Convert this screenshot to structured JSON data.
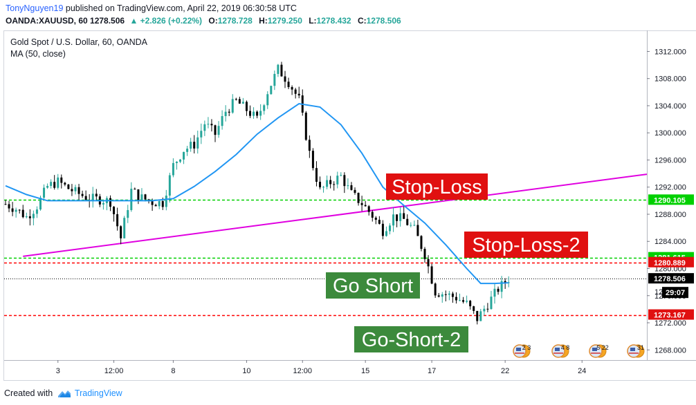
{
  "header": {
    "author": "TonyNguyen19",
    "published_text": "published on TradingView.com, April 22, 2019 06:30:58 UTC",
    "symbol": "OANDA:XAUUSD, 60",
    "last": "1278.506",
    "change": "▲ +2.826 (+0.22%)",
    "o_label": "O:",
    "o_value": "1278.728",
    "h_label": "H:",
    "h_value": "1279.250",
    "l_label": "L:",
    "l_value": "1278.432",
    "c_label": "C:",
    "c_value": "1278.506"
  },
  "legend": {
    "title": "Gold Spot / U.S. Dollar, 60, OANDA",
    "ma": "MA (50, close)"
  },
  "footer": {
    "created_with": "Created with",
    "brand": "TradingView"
  },
  "colors": {
    "up": "#26a69a",
    "candle_body": "#000000",
    "ma_line": "#2196f3",
    "trendline": "#e000e0",
    "green_level": "#00d000",
    "red_level": "#ff0000",
    "label_green_bg": "#3c8a3c",
    "label_red_bg": "#e01010"
  },
  "annotations": {
    "stop_loss": "Stop-Loss",
    "stop_loss_2": "Stop-Loss-2",
    "go_short": "Go Short",
    "go_short_2": "Go-Short-2"
  },
  "chart_data": {
    "type": "candlestick",
    "title": "Gold Spot / U.S. Dollar, 60, OANDA",
    "ylim": [
      1266.5,
      1315
    ],
    "y_ticks": [
      "1268.000",
      "1272.000",
      "1276.000",
      "1280.000",
      "1284.000",
      "1288.000",
      "1292.000",
      "1296.000",
      "1300.000",
      "1304.000",
      "1308.000",
      "1312.000"
    ],
    "x_ticks": [
      "3",
      "12:00",
      "8",
      "10",
      "12:00",
      "15",
      "17",
      "22",
      "24"
    ],
    "x_tick_index": [
      15,
      31,
      48,
      69,
      85,
      103,
      122,
      143,
      165
    ],
    "price_labels": [
      {
        "value": 1290.105,
        "text": "1290.105",
        "kind": "green"
      },
      {
        "value": 1281.615,
        "text": "1281.615",
        "kind": "green"
      },
      {
        "value": 1280.889,
        "text": "1280.889",
        "kind": "red"
      },
      {
        "value": 1278.506,
        "text": "1278.506",
        "kind": "last"
      },
      {
        "value": 1273.167,
        "text": "1273.167",
        "kind": "red"
      }
    ],
    "countdown": "29:07",
    "hidden_tick": "12",
    "horizontal_levels": [
      {
        "value": 1290.105,
        "style": "green-dashed"
      },
      {
        "value": 1281.615,
        "style": "green-dashed"
      },
      {
        "value": 1280.889,
        "style": "red-dashed"
      },
      {
        "value": 1278.506,
        "style": "black-dotted"
      },
      {
        "value": 1273.167,
        "style": "red-dashed"
      }
    ],
    "trendlines": [
      {
        "x1": 5,
        "y1": 1281.8,
        "x2": 187,
        "y2": 1293.9
      }
    ],
    "series": [
      {
        "name": "XAUUSD",
        "x": [
          0,
          3,
          6,
          9,
          12,
          15,
          18,
          21,
          24,
          27,
          30,
          33,
          36,
          39,
          42,
          45,
          48,
          51,
          54,
          57,
          60,
          63,
          66,
          69,
          72,
          75,
          78,
          81,
          84,
          87,
          90,
          93,
          96,
          99,
          102,
          105,
          108,
          111,
          114,
          117,
          120,
          123,
          126,
          129,
          132,
          135,
          138,
          141,
          144
        ],
        "close": [
          1289.5,
          1288.8,
          1287.6,
          1289.2,
          1292.1,
          1292.8,
          1291.8,
          1291.0,
          1290.3,
          1290.2,
          1289.9,
          1284.5,
          1291.5,
          1290.4,
          1289.8,
          1289.7,
          1295.2,
          1297.5,
          1298.3,
          1301.4,
          1299.8,
          1303.2,
          1304.7,
          1303.4,
          1302.0,
          1306.1,
          1309.4,
          1307.5,
          1304.9,
          1297.0,
          1291.5,
          1292.7,
          1293.6,
          1291.0,
          1289.6,
          1287.8,
          1285.6,
          1287.7,
          1287.2,
          1285.7,
          1282.1,
          1276.6,
          1276.2,
          1275.7,
          1274.8,
          1272.6,
          1274.8,
          1277.0,
          1278.5
        ]
      },
      {
        "name": "MA (50, close)",
        "x": [
          0,
          6,
          12,
          18,
          24,
          30,
          36,
          42,
          48,
          54,
          60,
          66,
          72,
          78,
          84,
          90,
          96,
          102,
          108,
          114,
          120,
          126,
          132,
          136,
          140,
          144
        ],
        "y": [
          1292.2,
          1290.9,
          1290.0,
          1290.0,
          1290.0,
          1290.0,
          1290.0,
          1290.0,
          1290.3,
          1292.1,
          1294.3,
          1296.8,
          1299.8,
          1302.2,
          1304.3,
          1303.8,
          1301.2,
          1297.0,
          1292.0,
          1289.3,
          1286.7,
          1283.5,
          1280.0,
          1277.8,
          1277.8,
          1277.9
        ]
      }
    ],
    "event_flags": [
      {
        "text": "2 3"
      },
      {
        "text": "4 8"
      },
      {
        "text": "5 22"
      },
      {
        "text": "31"
      }
    ]
  }
}
